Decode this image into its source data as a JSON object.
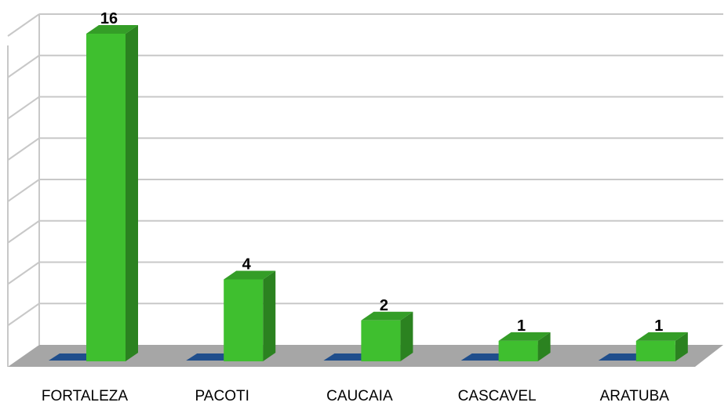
{
  "chart_data": {
    "type": "bar",
    "style": "3d-column",
    "categories": [
      "FORTALEZA",
      "PACOTI",
      "CAUCAIA",
      "CASCAVEL",
      "ARATUBA"
    ],
    "series": [
      {
        "values": [
          0,
          0,
          0,
          0,
          0
        ],
        "color": "#1f4e8c"
      },
      {
        "values": [
          16,
          4,
          2,
          1,
          1
        ],
        "color": "#3fbf2f",
        "data_labels": [
          "16",
          "4",
          "2",
          "1",
          "1"
        ]
      }
    ],
    "title": "",
    "xlabel": "",
    "ylabel": "",
    "ylim": [
      0,
      16
    ],
    "y_ticks_printed": false,
    "grid": true,
    "legend": "none"
  }
}
